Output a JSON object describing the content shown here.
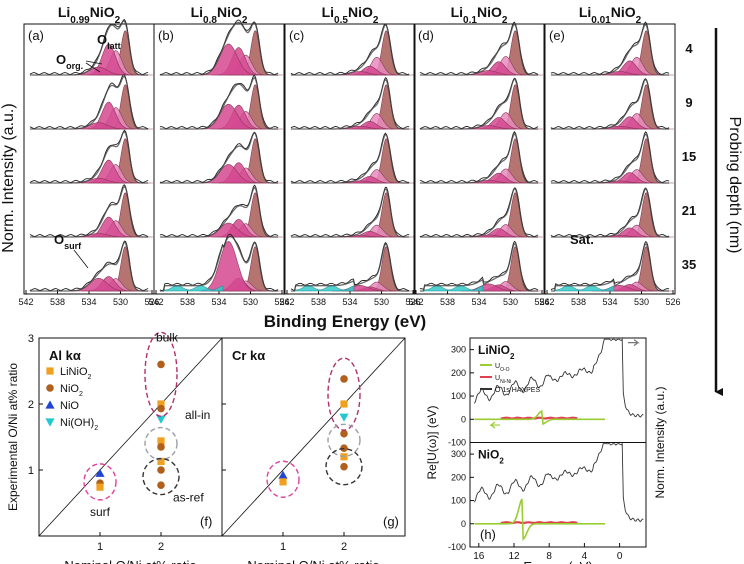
{
  "chart_data": [
    {
      "type": "line",
      "subtype": "XPS O 1s stacked spectra grid",
      "ylabel": "Norm. Intensity (a.u.)",
      "xlabel": "Binding Energy (eV)",
      "xticks": [
        "542",
        "538",
        "534",
        "530",
        "526"
      ],
      "xlim": [
        542,
        526
      ],
      "x_reversed": true,
      "right_axis_label": "Probing depth (nm)",
      "depths": [
        "4",
        "9",
        "15",
        "21",
        "35"
      ],
      "panels": [
        {
          "letter": "(a)",
          "comp_base": "Li",
          "comp_sub": "0.99",
          "comp_tail": "NiO",
          "comp_o": "2"
        },
        {
          "letter": "(b)",
          "comp_base": "Li",
          "comp_sub": "0.8",
          "comp_tail": "NiO",
          "comp_o": "2"
        },
        {
          "letter": "(c)",
          "comp_base": "Li",
          "comp_sub": "0.5",
          "comp_tail": "NiO",
          "comp_o": "2"
        },
        {
          "letter": "(d)",
          "comp_base": "Li",
          "comp_sub": "0.1",
          "comp_tail": "NiO",
          "comp_o": "2"
        },
        {
          "letter": "(e)",
          "comp_base": "Li",
          "comp_sub": "0.01",
          "comp_tail": "NiO",
          "comp_o": "2"
        }
      ],
      "annotations": {
        "o_latt": {
          "base": "O",
          "sub": "latt"
        },
        "o_org": {
          "base": "O",
          "sub": "org."
        },
        "o_surf": {
          "base": "O",
          "sub": "surf"
        },
        "sat": "Sat."
      },
      "components_eV": {
        "O_latt": 529.4,
        "O_org_a": 530.6,
        "O_org_b": 531.5,
        "O_surf": 532.8
      },
      "colors": {
        "lattice": "#a85c57",
        "organic": "#d4488f",
        "organic_light": "#e78bbd",
        "satellite": "#33c9c9",
        "fit": "#444444",
        "data": "#222222"
      }
    },
    {
      "type": "scatter",
      "panel": "(f)",
      "source": "Al kα",
      "xlabel": "Nominal O/Ni at% ratio",
      "ylabel": "Experimental O/Ni at% ratio",
      "xlim": [
        0,
        3
      ],
      "ylim": [
        0,
        3
      ],
      "xticks": [
        "1",
        "2"
      ],
      "yticks": [
        "1",
        "2",
        "3"
      ],
      "diagonal": true,
      "legend": [
        {
          "label": "LiNiO",
          "sub": "2",
          "marker": "square",
          "color": "#f0a020"
        },
        {
          "label": "NiO",
          "sub": "2",
          "marker": "circle",
          "color": "#b0601c"
        },
        {
          "label": "NiO",
          "sub": "",
          "marker": "triangle-up",
          "color": "#2046d8"
        },
        {
          "label": "Ni(OH)",
          "sub": "2",
          "marker": "triangle-down",
          "color": "#20c8d0"
        }
      ],
      "points": [
        {
          "series": "LiNiO2",
          "x": 2,
          "y": 2.0
        },
        {
          "series": "LiNiO2",
          "x": 2,
          "y": 1.44
        },
        {
          "series": "LiNiO2",
          "x": 2,
          "y": 1.13
        },
        {
          "series": "NiO2",
          "x": 2,
          "y": 2.6
        },
        {
          "series": "NiO2",
          "x": 2,
          "y": 1.93
        },
        {
          "series": "NiO2",
          "x": 2,
          "y": 1.35
        },
        {
          "series": "NiO2",
          "x": 2,
          "y": 1.0
        },
        {
          "series": "NiO2",
          "x": 2,
          "y": 0.77
        },
        {
          "series": "Ni(OH)2",
          "x": 2,
          "y": 1.77
        },
        {
          "series": "NiO",
          "x": 1,
          "y": 0.95
        },
        {
          "series": "NiO2",
          "x": 1,
          "y": 0.8
        },
        {
          "series": "LiNiO2",
          "x": 1,
          "y": 0.74
        }
      ],
      "group_labels": [
        "bulk",
        "all-in",
        "as-ref",
        "surf"
      ]
    },
    {
      "type": "scatter",
      "panel": "(g)",
      "source": "Cr kα",
      "xlabel": "Nominal O/Ni at% ratio",
      "xlim": [
        0,
        3
      ],
      "ylim": [
        0,
        3
      ],
      "xticks": [
        "1",
        "2"
      ],
      "diagonal": true,
      "points": [
        {
          "series": "NiO2",
          "x": 2,
          "y": 2.38
        },
        {
          "series": "LiNiO2",
          "x": 2,
          "y": 2.0
        },
        {
          "series": "Ni(OH)2",
          "x": 2,
          "y": 1.8
        },
        {
          "series": "NiO2",
          "x": 2,
          "y": 1.55
        },
        {
          "series": "NiO2",
          "x": 2,
          "y": 1.33
        },
        {
          "series": "LiNiO2",
          "x": 2,
          "y": 1.2
        },
        {
          "series": "NiO2",
          "x": 2,
          "y": 1.05
        },
        {
          "series": "NiO",
          "x": 1,
          "y": 0.92
        },
        {
          "series": "LiNiO2",
          "x": 1,
          "y": 0.82
        }
      ]
    },
    {
      "type": "line",
      "panel": "(h)",
      "xlabel": "Energy (eV)",
      "ylabel": "Re[U(ω)] (eV)",
      "right_label": "Norm. Intensity (a.u.)",
      "xlim": [
        17,
        -3
      ],
      "x_reversed": true,
      "xticks": [
        "16",
        "12",
        "8",
        "4",
        "0"
      ],
      "yticks": [
        "300",
        "200",
        "100",
        "0",
        "-100"
      ],
      "subpanels": [
        {
          "label_base": "LiNiO",
          "label_sub": "2",
          "ylim": [
            -100,
            350
          ]
        },
        {
          "label_base": "NiO",
          "label_sub": "2",
          "ylim": [
            -100,
            350
          ]
        }
      ],
      "legend": [
        {
          "base": "U",
          "sub": "O-O",
          "color": "#9acd32"
        },
        {
          "base": "U",
          "sub": "Ni-Ni",
          "color": "#e04050"
        },
        {
          "base": "O 1s HAXPES",
          "sub": "",
          "color": "#333333"
        }
      ]
    }
  ]
}
